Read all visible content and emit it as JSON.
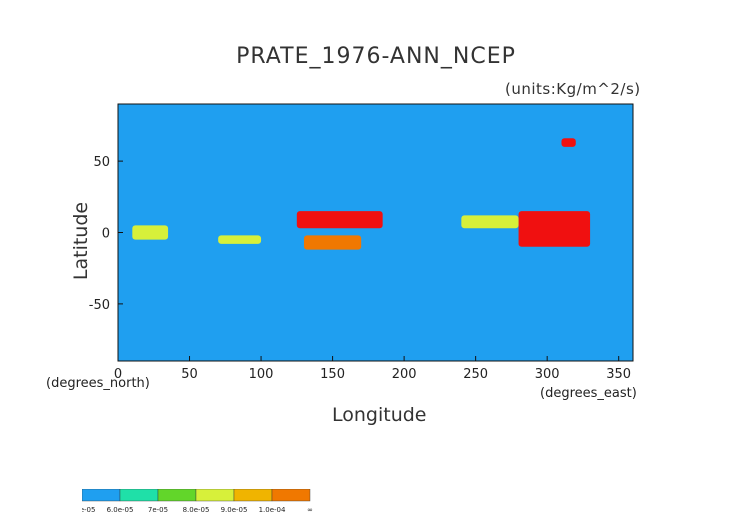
{
  "chart_data": {
    "type": "heatmap",
    "title": "PRATE_1976-ANN_NCEP",
    "units_label": "(units:Kg/m^2/s)",
    "xlabel": "Longitude",
    "ylabel": "Latitude",
    "x_units_label": "(degrees_east)",
    "y_units_label": "(degrees_north)",
    "xlim": [
      0,
      360
    ],
    "ylim": [
      -90,
      90
    ],
    "xticks": [
      0,
      50,
      100,
      150,
      200,
      250,
      300,
      350
    ],
    "yticks": [
      -50,
      0,
      50
    ],
    "colorbar": {
      "bins": [
        {
          "label": "5.0e-05",
          "color": "#1f9ff0"
        },
        {
          "label": "6.0e-05",
          "color": "#1fe0a8"
        },
        {
          "label": "7e-05",
          "color": "#62d62a"
        },
        {
          "label": "8.0e-05",
          "color": "#d7f03a"
        },
        {
          "label": "9.0e-05",
          "color": "#f0b400"
        },
        {
          "label": "1.0e-04",
          "color": "#f07800"
        },
        {
          "label": "∞",
          "color": "#f01010"
        }
      ]
    },
    "background_level_color": "#1f9ff0",
    "regions": [
      {
        "lon": [
          280,
          330
        ],
        "lat": [
          -10,
          15
        ],
        "level": 6
      },
      {
        "lon": [
          125,
          185
        ],
        "lat": [
          3,
          15
        ],
        "level": 6
      },
      {
        "lon": [
          130,
          170
        ],
        "lat": [
          -12,
          -2
        ],
        "level": 5
      },
      {
        "lon": [
          240,
          280
        ],
        "lat": [
          3,
          12
        ],
        "level": 3
      },
      {
        "lon": [
          70,
          100
        ],
        "lat": [
          -8,
          -2
        ],
        "level": 3
      },
      {
        "lon": [
          10,
          35
        ],
        "lat": [
          -5,
          5
        ],
        "level": 3
      },
      {
        "lon": [
          310,
          320
        ],
        "lat": [
          60,
          66
        ],
        "level": 6
      }
    ]
  }
}
